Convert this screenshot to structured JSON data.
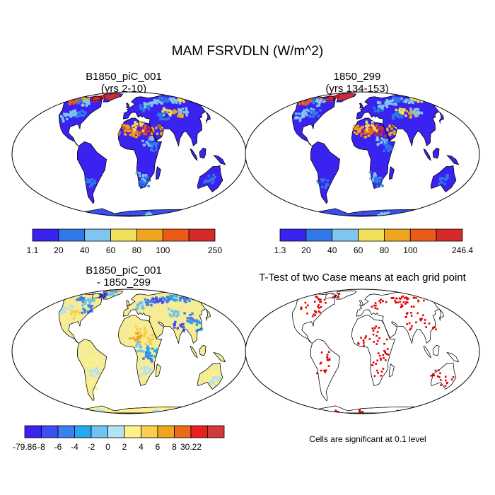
{
  "title": "MAM FSRVDLN (W/m^2)",
  "chart_data": [
    {
      "type": "heatmap",
      "title_line1": "B1850_piC_001",
      "title_line2": "(yrs 2-10)",
      "colorbar": {
        "labels": [
          "1.1",
          "20",
          "40",
          "60",
          "80",
          "100",
          "250"
        ],
        "colors": [
          "#3a22f0",
          "#2f7ae6",
          "#7ec6ef",
          "#f3e05a",
          "#f0a520",
          "#ec5a18",
          "#d62a2a"
        ]
      }
    },
    {
      "type": "heatmap",
      "title_line1": "1850_299",
      "title_line2": "(yrs 134-153)",
      "colorbar": {
        "labels": [
          "1.3",
          "20",
          "40",
          "60",
          "80",
          "100",
          "246.4"
        ],
        "colors": [
          "#3a22f0",
          "#2f7ae6",
          "#7ec6ef",
          "#f3e05a",
          "#f0a520",
          "#ec5a18",
          "#d62a2a"
        ]
      }
    },
    {
      "type": "heatmap",
      "title_line1": "B1850_piC_001",
      "title_line2": "- 1850_299",
      "colorbar": {
        "labels": [
          "-79.86",
          "-8",
          "-6",
          "-4",
          "-2",
          "0",
          "2",
          "4",
          "6",
          "8",
          "30.22"
        ],
        "colors": [
          "#3a22f0",
          "#3b4ff2",
          "#3e7fee",
          "#27a7ef",
          "#6ec3ef",
          "#b4e2f2",
          "#fdf28e",
          "#f8cf4a",
          "#f0a520",
          "#ec6a1c",
          "#e8201e",
          "#d03a3a"
        ]
      }
    },
    {
      "type": "heatmap",
      "title_line1": "T-Test of two Case means at each grid point",
      "note": "Cells are significant at 0.1 level",
      "colors": {
        "significant": "#e00000"
      }
    }
  ]
}
